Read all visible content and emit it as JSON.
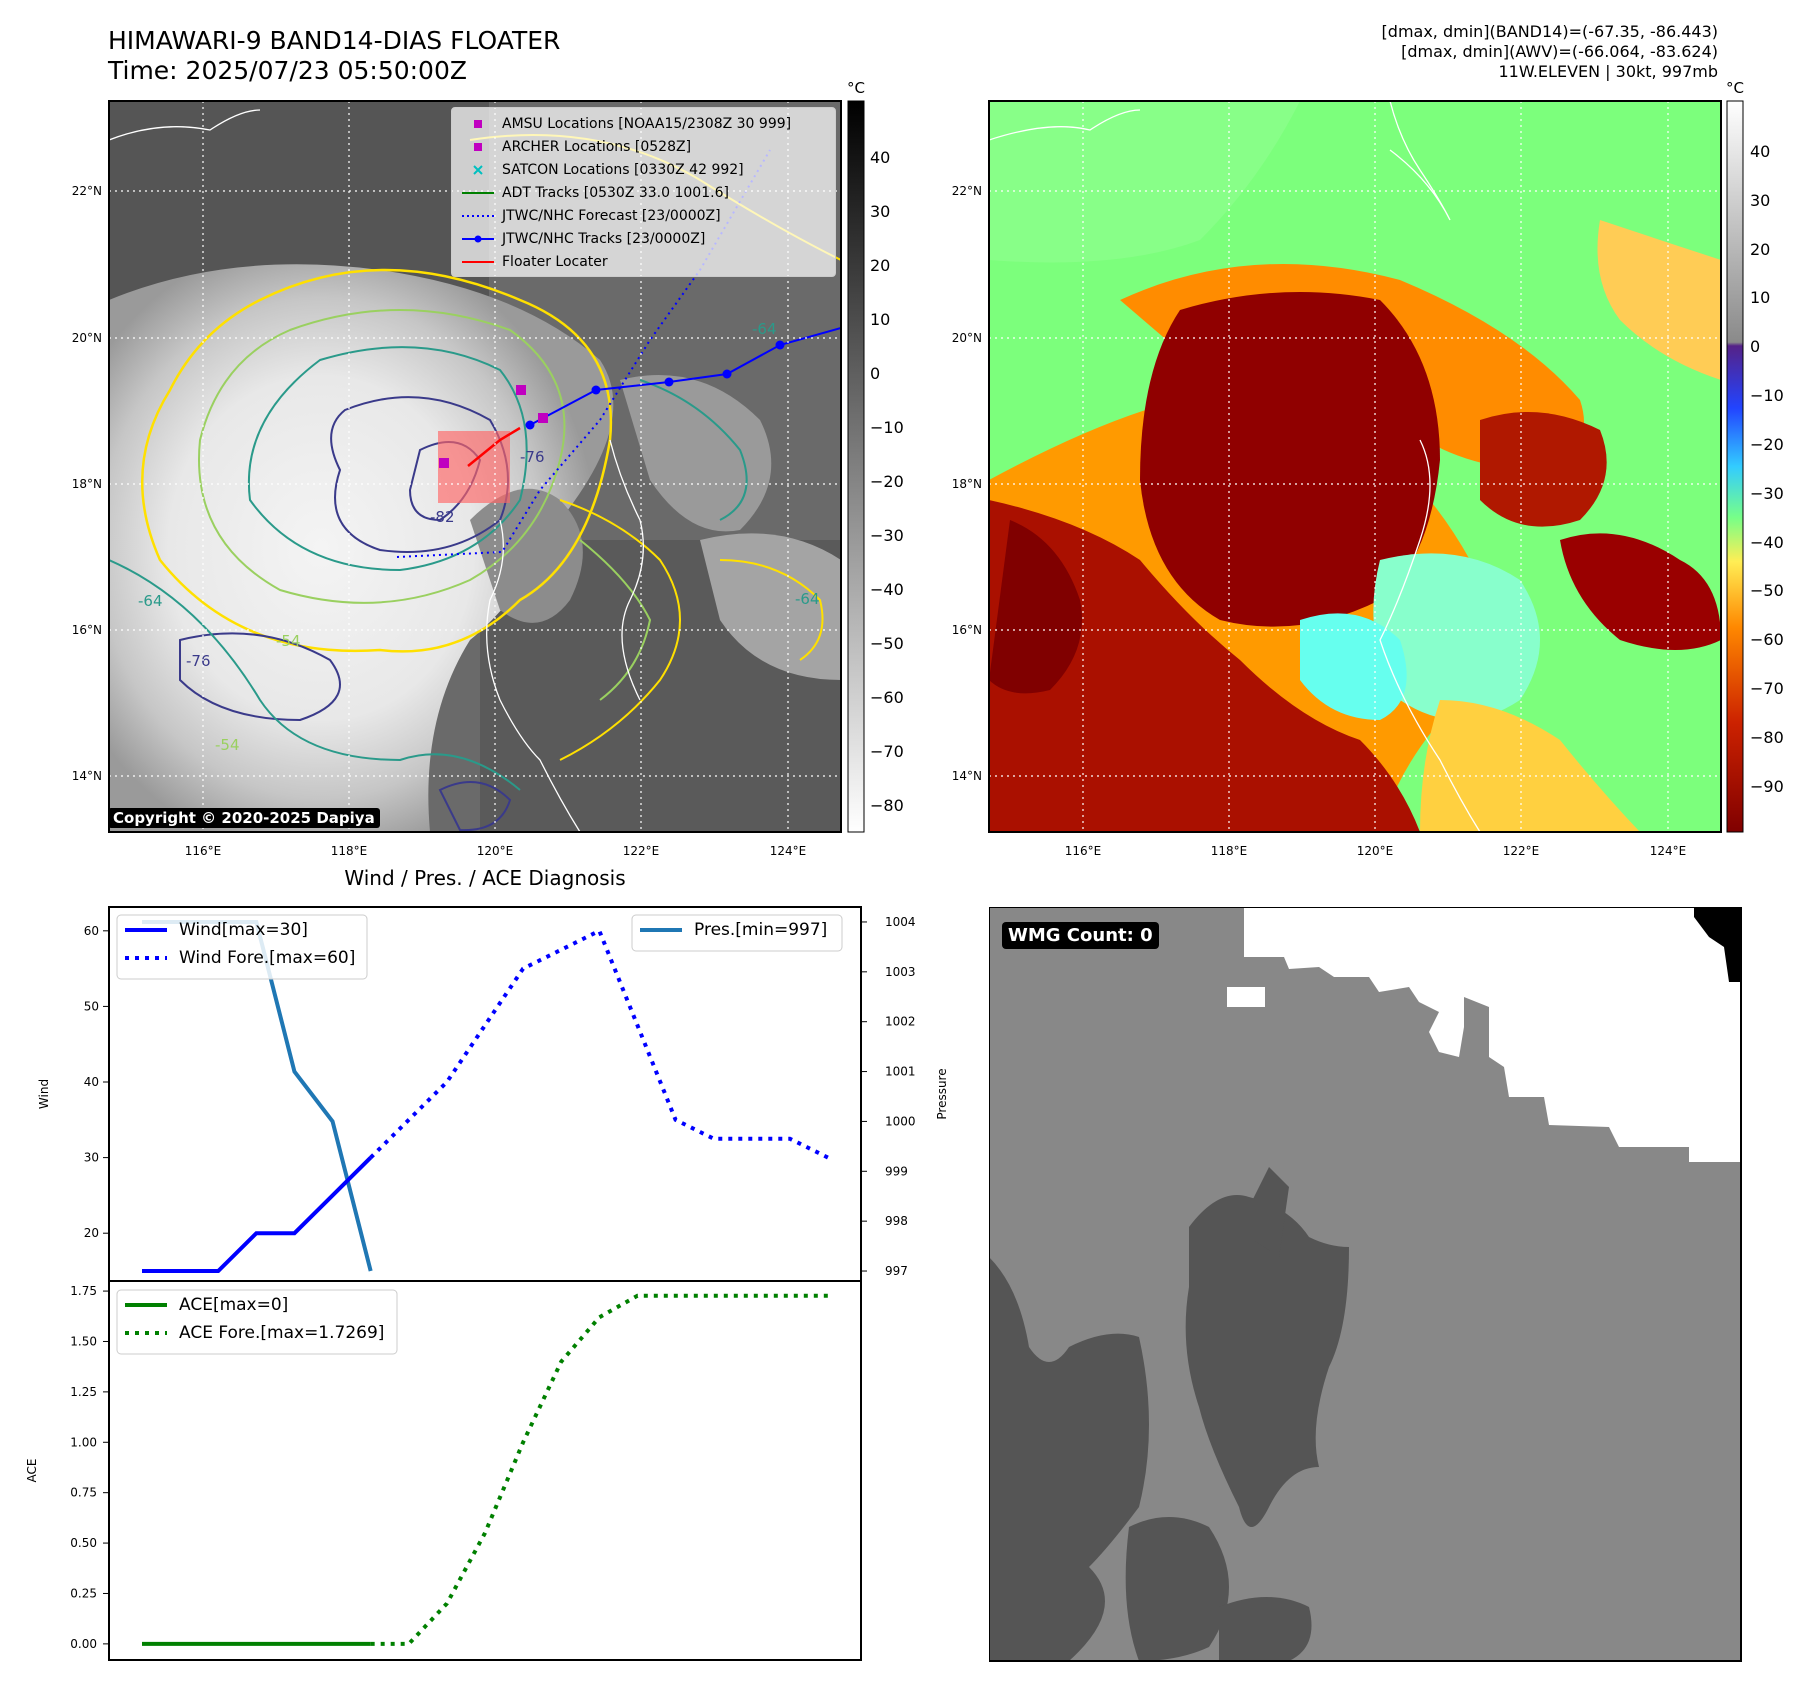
{
  "header": {
    "title_line1": "HIMAWARI-9 BAND14-DIAS FLOATER",
    "title_line2": "Time: 2025/07/23 05:50:00Z",
    "meta_line1": "[dmax, dmin](BAND14)=(-67.35, -86.443)",
    "meta_line2": "[dmax, dmin](AWV)=(-66.064, -83.624)",
    "meta_line3": "11W.ELEVEN | 30kt, 997mb"
  },
  "map_panel": {
    "lat_labels": [
      "22°N",
      "20°N",
      "18°N",
      "16°N",
      "14°N"
    ],
    "lon_labels": [
      "116°E",
      "118°E",
      "120°E",
      "122°E",
      "124°E"
    ],
    "copyright": "Copyright © 2020-2025 Dapiya",
    "legend": [
      {
        "label": "AMSU Locations [NOAA15/2308Z 30 999]",
        "color": "#c000c0",
        "marker": "square"
      },
      {
        "label": "ARCHER Locations [0528Z]",
        "color": "#c000c0",
        "marker": "square"
      },
      {
        "label": "SATCON Locations [0330Z 42 992]",
        "color": "#00c0c0",
        "marker": "x"
      },
      {
        "label": "ADT Tracks [0530Z 33.0 1001.6]",
        "color": "#008000",
        "marker": "line"
      },
      {
        "label": "JTWC/NHC Forecast [23/0000Z]",
        "color": "#0000ff",
        "marker": "dotted"
      },
      {
        "label": "JTWC/NHC Tracks [23/0000Z]",
        "color": "#0000ff",
        "marker": "line-dot"
      },
      {
        "label": "Floater Locater",
        "color": "#ff0000",
        "marker": "line"
      }
    ],
    "contour_labels": [
      "-64",
      "-76",
      "-64",
      "-76",
      "-64",
      "-54",
      "-54",
      "-82"
    ]
  },
  "colorbars": {
    "unit": "°C",
    "gray_ticks": [
      "40",
      "30",
      "20",
      "10",
      "0",
      "−10",
      "−20",
      "−30",
      "−40",
      "−50",
      "−60",
      "−70",
      "−80"
    ],
    "color_ticks": [
      "40",
      "30",
      "20",
      "10",
      "0",
      "−10",
      "−20",
      "−30",
      "−40",
      "−50",
      "−60",
      "−70",
      "−80",
      "−90"
    ]
  },
  "wmg": {
    "badge": "WMG Count: 0"
  },
  "chart_data": [
    {
      "type": "line",
      "title": "Wind / Pres. / ACE Diagnosis",
      "ylabel": "Wind",
      "ylim": [
        15,
        62
      ],
      "yticks": [
        20,
        30,
        40,
        50,
        60
      ],
      "series": [
        {
          "name": "Wind[max=30]",
          "color": "#0000ff",
          "style": "solid",
          "points": [
            [
              0,
              15
            ],
            [
              1,
              15
            ],
            [
              2,
              15
            ],
            [
              3,
              20
            ],
            [
              4,
              20
            ],
            [
              5,
              25
            ],
            [
              6,
              30
            ]
          ]
        },
        {
          "name": "Wind Fore.[max=60]",
          "color": "#0000ff",
          "style": "dotted",
          "points": [
            [
              6,
              30
            ],
            [
              8,
              40
            ],
            [
              10,
              55
            ],
            [
              12,
              60
            ],
            [
              14,
              35
            ],
            [
              15,
              32.5
            ],
            [
              17,
              32.5
            ],
            [
              18,
              30
            ]
          ]
        }
      ]
    },
    {
      "type": "line",
      "ylabel": "Pressure",
      "ylim": [
        996.8,
        1004.3
      ],
      "yticks": [
        997,
        998,
        999,
        1000,
        1001,
        1002,
        1003,
        1004
      ],
      "series": [
        {
          "name": "Pres.[min=997]",
          "color": "#1f77b4",
          "style": "solid",
          "points": [
            [
              0,
              1004
            ],
            [
              1,
              1004
            ],
            [
              2,
              1004
            ],
            [
              3,
              1004
            ],
            [
              4,
              1001
            ],
            [
              5,
              1000
            ],
            [
              6,
              997
            ]
          ]
        }
      ]
    },
    {
      "type": "line",
      "ylabel": "ACE",
      "ylim": [
        -0.08,
        1.8
      ],
      "yticks": [
        "0.00",
        "0.25",
        "0.50",
        "0.75",
        "1.00",
        "1.25",
        "1.50",
        "1.75"
      ],
      "series": [
        {
          "name": "ACE[max=0]",
          "color": "#008000",
          "style": "solid",
          "points": [
            [
              0,
              0
            ],
            [
              6,
              0
            ]
          ]
        },
        {
          "name": "ACE Fore.[max=1.7269]",
          "color": "#008000",
          "style": "dotted",
          "points": [
            [
              6,
              0
            ],
            [
              7,
              0
            ],
            [
              8,
              0.2
            ],
            [
              9,
              0.55
            ],
            [
              10,
              1.0
            ],
            [
              11,
              1.4
            ],
            [
              12,
              1.62
            ],
            [
              13,
              1.7269
            ],
            [
              18,
              1.7269
            ]
          ]
        }
      ]
    }
  ]
}
